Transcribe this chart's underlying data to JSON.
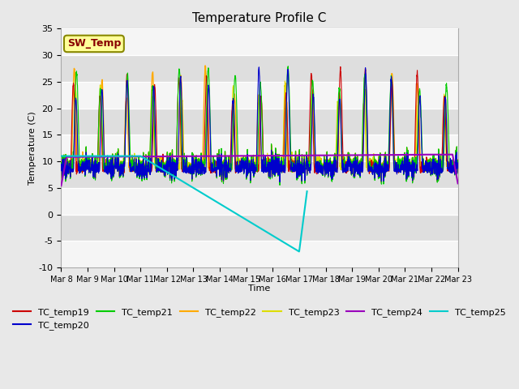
{
  "title": "Temperature Profile C",
  "xlabel": "Time",
  "ylabel": "Temperature (C)",
  "ylim": [
    -10,
    35
  ],
  "n_days": 15,
  "ytick_values": [
    -10,
    -5,
    0,
    5,
    10,
    15,
    20,
    25,
    30,
    35
  ],
  "xtick_labels": [
    "Mar 8",
    "Mar 9",
    "Mar 10",
    "Mar 11",
    "Mar 12",
    "Mar 13",
    "Mar 14",
    "Mar 15",
    "Mar 16",
    "Mar 17",
    "Mar 18",
    "Mar 19",
    "Mar 20",
    "Mar 21",
    "Mar 22",
    "Mar 23"
  ],
  "series_colors": {
    "TC_temp19": "#cc0000",
    "TC_temp20": "#0000cc",
    "TC_temp21": "#00cc00",
    "TC_temp22": "#ffaa00",
    "TC_temp23": "#dddd00",
    "TC_temp24": "#9900bb",
    "TC_temp25": "#00cccc"
  },
  "sw_temp_box_facecolor": "#ffff99",
  "sw_temp_text_color": "#880000",
  "sw_temp_border_color": "#888800",
  "bg_color": "#e8e8e8",
  "band_light": "#f5f5f5",
  "band_dark": "#dedede"
}
